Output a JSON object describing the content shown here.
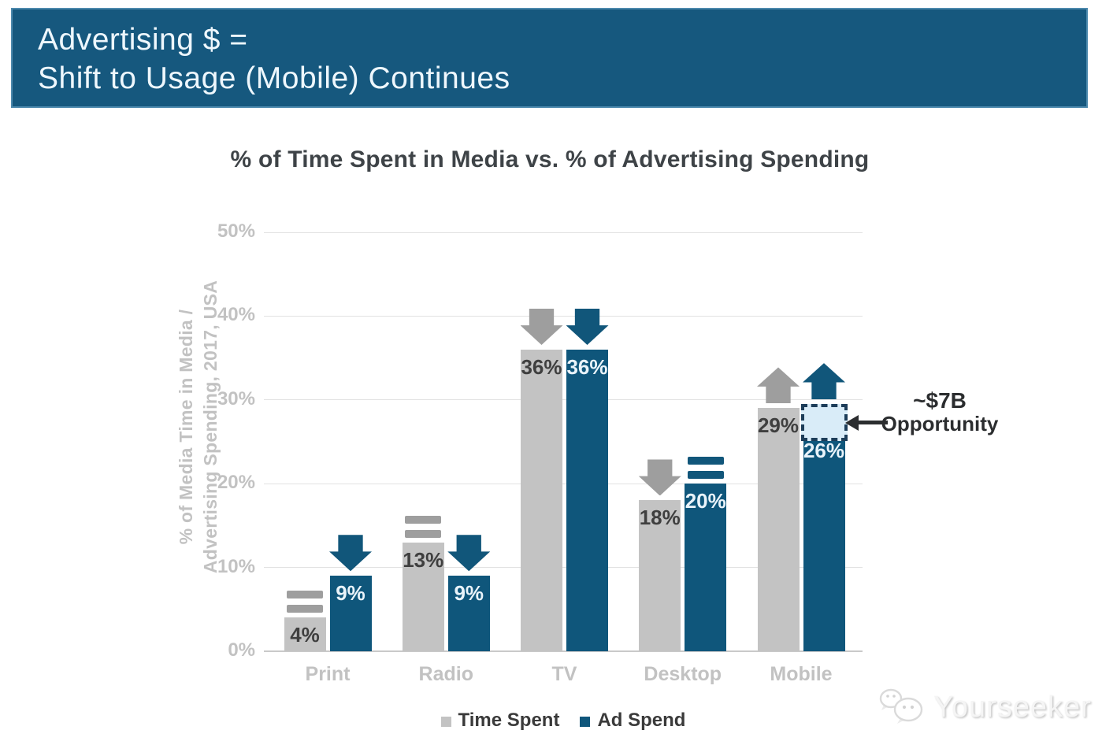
{
  "header": {
    "line1": "Advertising $ =",
    "line2": "Shift to Usage (Mobile) Continues"
  },
  "chart_data": {
    "type": "bar",
    "title": "% of Time Spent in Media vs. % of Advertising Spending",
    "ylabel_lines": [
      "% of Media Time in Media /",
      "Advertising Spending, 2017, USA"
    ],
    "categories": [
      "Print",
      "Radio",
      "TV",
      "Desktop",
      "Mobile"
    ],
    "series": [
      {
        "name": "Time Spent",
        "color_key": "gray",
        "values": [
          4,
          13,
          36,
          18,
          29
        ],
        "trend": [
          "equals",
          "equals",
          "down",
          "down",
          "up"
        ]
      },
      {
        "name": "Ad Spend",
        "color_key": "blue",
        "values": [
          9,
          9,
          36,
          20,
          26
        ],
        "trend": [
          "down",
          "down",
          "down",
          "equals",
          "up"
        ]
      }
    ],
    "value_suffix": "%",
    "ylim": [
      0,
      50
    ],
    "ytick_step": 10,
    "ytick_labels": [
      "0%",
      "10%",
      "20%",
      "30%",
      "40%",
      "50%"
    ],
    "grid": true,
    "legend_position": "bottom",
    "annotation": {
      "line1": "~$7B",
      "line2": "Opportunity",
      "target_category": "Mobile",
      "target_series": "Ad Spend",
      "box_from_pct": 26,
      "box_to_pct": 29.5
    }
  },
  "watermark": {
    "text": "Yourseeker"
  },
  "colors": {
    "banner_bg": "#16587e",
    "banner_border": "#4c89ad",
    "banner_text": "#eef7fd",
    "bar_gray": "#c3c3c3",
    "bar_blue": "#0f567b",
    "indicator_gray": "#9e9e9e",
    "indicator_blue": "#11567a",
    "label_on_gray": "#3f3f3f",
    "label_on_blue": "#e9f3fa",
    "axis_text": "#c2c2c2",
    "grid_line": "#e2e2e2",
    "baseline": "#c9c9c9",
    "title_text": "#3e4347",
    "annotation_text": "#2b2d2f",
    "opportunity_fill": "#d9ecf8",
    "opportunity_border": "#1d3d59",
    "legend_text": "#3a3a3a",
    "watermark_text": "#f5f5f5"
  }
}
